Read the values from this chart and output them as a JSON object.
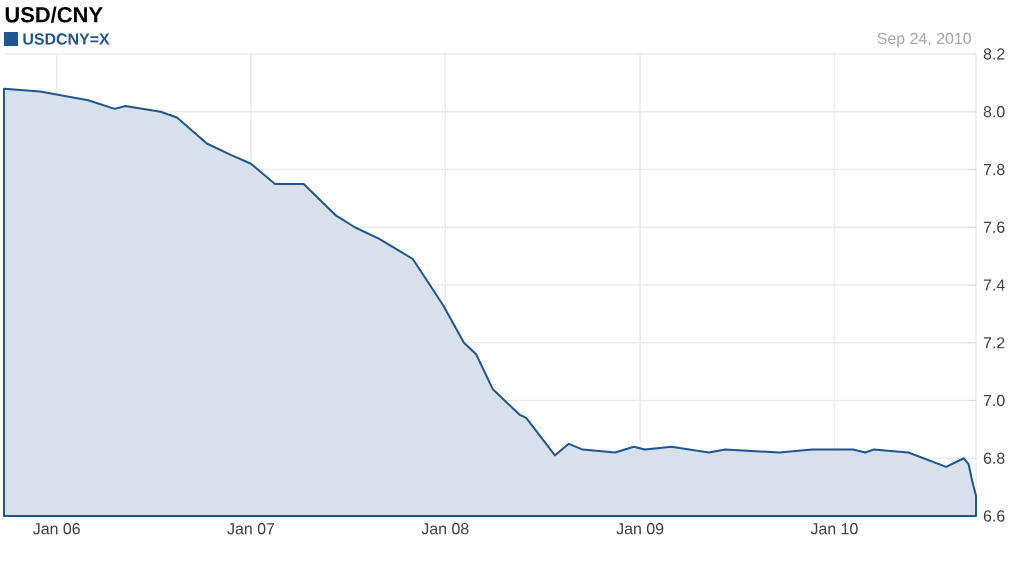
{
  "chart_data": {
    "type": "area",
    "title": "USD/CNY",
    "annotations": [
      "Sep 24, 2010"
    ],
    "xlim": [
      "2005-09-24",
      "2010-09-24"
    ],
    "xticks": [
      {
        "value": "2006-01-01",
        "label": "Jan 06"
      },
      {
        "value": "2007-01-01",
        "label": "Jan 07"
      },
      {
        "value": "2008-01-01",
        "label": "Jan 08"
      },
      {
        "value": "2009-01-01",
        "label": "Jan 09"
      },
      {
        "value": "2010-01-01",
        "label": "Jan 10"
      }
    ],
    "ylim": [
      6.6,
      8.2
    ],
    "yticks": [
      6.6,
      6.8,
      {
        "value": 7,
        "label": "7.0"
      },
      7.2,
      7.4,
      7.6,
      7.8,
      {
        "value": 8,
        "label": "8.0"
      },
      8.2
    ],
    "grid": true,
    "legend": "top left",
    "x": [
      "2005-09-24",
      "2005-12-01",
      "2006-01-01",
      "2006-03-01",
      "2006-04-20",
      "2006-05-10",
      "2006-07-15",
      "2006-08-15",
      "2006-10-10",
      "2006-11-25",
      "2007-01-01",
      "2007-02-15",
      "2007-04-10",
      "2007-06-10",
      "2007-07-15",
      "2007-08-30",
      "2007-11-01",
      "2007-12-28",
      "2008-02-05",
      "2008-02-28",
      "2008-03-30",
      "2008-05-20",
      "2008-06-01",
      "2008-07-25",
      "2008-08-20",
      "2008-09-15",
      "2008-11-15",
      "2008-12-20",
      "2009-01-10",
      "2009-03-01",
      "2009-05-10",
      "2009-06-10",
      "2009-09-20",
      "2009-11-20",
      "2010-02-05",
      "2010-02-28",
      "2010-03-15",
      "2010-05-20",
      "2010-07-30",
      "2010-09-01",
      "2010-09-10",
      "2010-09-17",
      "2010-09-24"
    ],
    "series": [
      {
        "name": "USDCNY=X",
        "color": "#1f5591",
        "values": [
          8.08,
          8.07,
          8.06,
          8.04,
          8.01,
          8.02,
          8.0,
          7.98,
          7.89,
          7.85,
          7.82,
          7.75,
          7.75,
          7.64,
          7.6,
          7.56,
          7.49,
          7.33,
          7.2,
          7.16,
          7.04,
          6.95,
          6.94,
          6.81,
          6.85,
          6.83,
          6.82,
          6.84,
          6.83,
          6.84,
          6.82,
          6.83,
          6.82,
          6.83,
          6.83,
          6.82,
          6.83,
          6.82,
          6.77,
          6.8,
          6.78,
          6.72,
          6.67
        ]
      }
    ]
  }
}
